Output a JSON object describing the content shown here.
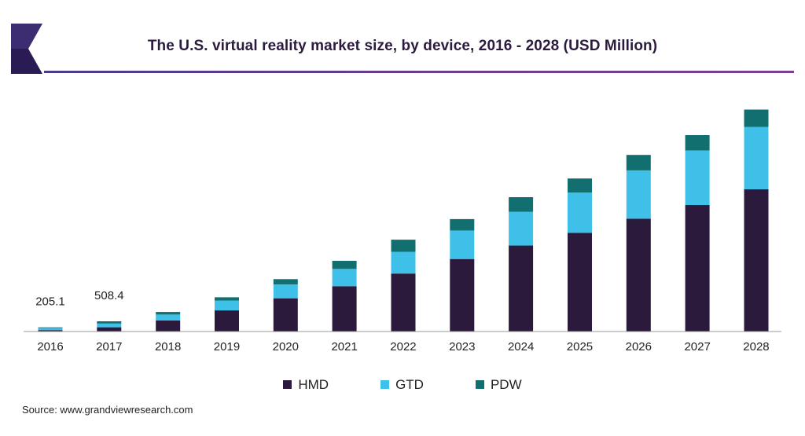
{
  "chart_data": {
    "type": "bar",
    "stacked": true,
    "title": "The U.S. virtual reality market size, by device, 2016 - 2028 (USD Million)",
    "categories": [
      "2016",
      "2017",
      "2018",
      "2019",
      "2020",
      "2021",
      "2022",
      "2023",
      "2024",
      "2025",
      "2026",
      "2027",
      "2028"
    ],
    "series": [
      {
        "name": "HMD",
        "color": "#2b1a3b",
        "values": [
          70,
          210,
          550,
          1050,
          1650,
          2250,
          2880,
          3600,
          4270,
          4900,
          5600,
          6280,
          7060
        ]
      },
      {
        "name": "GTD",
        "color": "#3fc0e8",
        "values": [
          95,
          190,
          290,
          490,
          680,
          860,
          1080,
          1410,
          1680,
          2000,
          2400,
          2700,
          3100
        ]
      },
      {
        "name": "PDW",
        "color": "#11706f",
        "values": [
          40,
          108,
          130,
          160,
          270,
          400,
          600,
          570,
          720,
          700,
          770,
          770,
          860
        ]
      }
    ],
    "data_labels": [
      {
        "category": "2016",
        "text": "205.1"
      },
      {
        "category": "2017",
        "text": "508.4"
      }
    ],
    "ylim": [
      0,
      11000
    ],
    "grid": false,
    "legend": "bottom"
  },
  "source": "Source: www.grandviewresearch.com"
}
